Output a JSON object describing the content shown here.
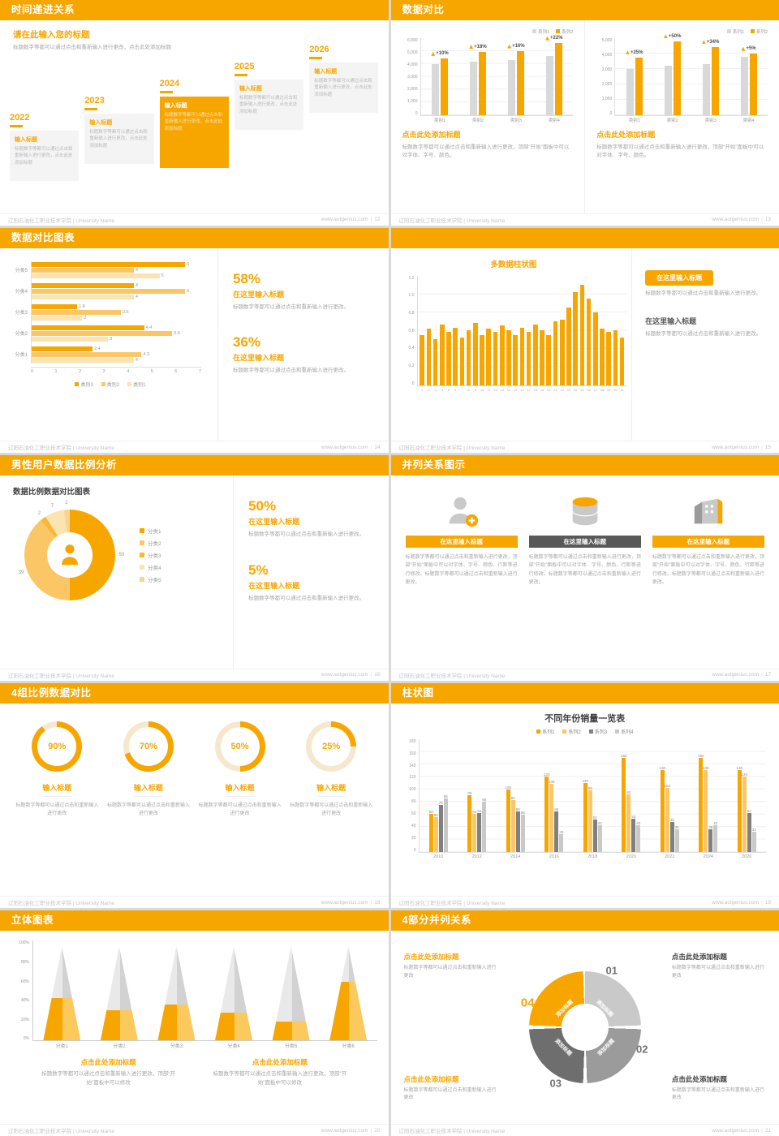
{
  "theme": {
    "orange": "#F7A600",
    "orange_light": "#FBC766",
    "orange_pale": "#FDE3B0",
    "gray_dark": "#595959",
    "gray_mid": "#9B9B9B",
    "gray_light": "#D9D9D9"
  },
  "footer": {
    "org": "辽阳石油化工职业技术学院 | University Name",
    "site": "www.aotgenius.com"
  },
  "slides": {
    "s1": {
      "header": "时间递进关系",
      "page": "12",
      "heading": "请在此输入您的标题",
      "subtext": "标题数字等都可以通过点击和重新输入进行更改，点击此处添加标题",
      "steps": [
        {
          "year": "2022",
          "title": "输入标题",
          "body": "标题数字等都可以通过点击和重新输入进行更改，点击此处添加标题",
          "highlight": false
        },
        {
          "year": "2023",
          "title": "输入标题",
          "body": "标题数字等都可以通过点击和重新输入进行更改，点击此处添加标题",
          "highlight": false
        },
        {
          "year": "2024",
          "title": "输入标题",
          "body": "标题数字等都可以通过点击和重新输入进行更改，点击此处添加标题",
          "highlight": true
        },
        {
          "year": "2025",
          "title": "输入标题",
          "body": "标题数字等都可以通过点击和重新输入进行更改，点击此处添加标题",
          "highlight": false
        },
        {
          "year": "2026",
          "title": "输入标题",
          "body": "标题数字等都可以通过点击和重新输入进行更改，点击此处添加标题",
          "highlight": false
        }
      ]
    },
    "s2": {
      "header": "数据对比",
      "page": "13",
      "left": {
        "type": "bar",
        "legend": [
          "系列1",
          "系列2"
        ],
        "yticks": [
          "6,000",
          "5,000",
          "4,000",
          "3,000",
          "2,000",
          "1,000",
          "0"
        ],
        "ymax": 6000,
        "categories": [
          "类别1",
          "类别2",
          "类别3",
          "类别4"
        ],
        "series1": [
          4000,
          4200,
          4300,
          4600
        ],
        "series2": [
          4400,
          4956,
          4988,
          5612
        ],
        "labels": [
          "+10%",
          "+18%",
          "+16%",
          "+22%"
        ],
        "title": "点击此处添加标题",
        "body": "标题数字等都可以通过点击和重新输入进行更改，顶部“开始”面板中可以对字体、字号、颜色。"
      },
      "right": {
        "type": "bar",
        "legend": [
          "系列1",
          "系列2"
        ],
        "yticks": [
          "5,000",
          "4,000",
          "3,000",
          "2,000",
          "1,000",
          "0"
        ],
        "ymax": 5000,
        "categories": [
          "类别1",
          "类别2",
          "类别3",
          "类别4"
        ],
        "series1": [
          3000,
          3200,
          3300,
          3800
        ],
        "series2": [
          3750,
          4800,
          4422,
          3990
        ],
        "labels": [
          "+25%",
          "+50%",
          "+34%",
          "+5%"
        ],
        "title": "点击此处添加标题",
        "body": "标题数字等都可以通过点击和重新输入进行更改，顶部“开始”面板中可以对字体、字号、颜色。"
      }
    },
    "s3": {
      "header": "数据对比图表",
      "page": "14",
      "chart": {
        "type": "bar",
        "categories": [
          "分类5",
          "分类4",
          "分类3",
          "分类2",
          "分类1"
        ],
        "series": [
          "类别3",
          "类别2",
          "类别1"
        ],
        "colors": [
          "#F7A600",
          "#FBC766",
          "#FDE3B0"
        ],
        "rows": [
          [
            6,
            4,
            5
          ],
          [
            4,
            6,
            4
          ],
          [
            1.8,
            3.5,
            2
          ],
          [
            4.4,
            5.5,
            3
          ],
          [
            2.4,
            4.3,
            4
          ]
        ],
        "xticks": [
          "0",
          "1",
          "2",
          "3",
          "4",
          "5",
          "6",
          "7"
        ],
        "xmax": 7
      },
      "stats": [
        {
          "pct": "58%",
          "title": "在这里输入标题",
          "body": "标题数字等都可以通过点击和重新输入进行更改。"
        },
        {
          "pct": "36%",
          "title": "在这里输入标题",
          "body": "标题数字等都可以通过点击和重新输入进行更改。"
        }
      ]
    },
    "s4": {
      "header": "数据柱状图",
      "page": "15",
      "chart": {
        "type": "bar",
        "title": "多数据柱状图",
        "yticks": [
          "1.2",
          "1.0",
          "0.8",
          "0.6",
          "0.4",
          "0.2",
          "0"
        ],
        "ymax": 1.2,
        "values": [
          0.55,
          0.62,
          0.5,
          0.66,
          0.58,
          0.63,
          0.52,
          0.6,
          0.68,
          0.55,
          0.62,
          0.58,
          0.65,
          0.6,
          0.55,
          0.63,
          0.58,
          0.66,
          0.6,
          0.55,
          0.7,
          0.72,
          0.85,
          1.02,
          1.1,
          0.95,
          0.8,
          0.62,
          0.58,
          0.6,
          0.52
        ],
        "xlabels": [
          "1",
          "2",
          "3",
          "4",
          "5",
          "6",
          "7",
          "8",
          "9",
          "10",
          "11",
          "12",
          "13",
          "14",
          "15",
          "16",
          "17",
          "18",
          "19",
          "20",
          "21",
          "22",
          "23",
          "24",
          "25",
          "26",
          "27",
          "28",
          "29",
          "30",
          "31"
        ]
      },
      "blocks": [
        {
          "title": "在这里输入标题",
          "body": "标题数字等都可以通过点击和重新输入进行更改。"
        },
        {
          "title": "在这里输入标题",
          "body": "标题数字等都可以通过点击和重新输入进行更改。"
        }
      ]
    },
    "s5": {
      "header": "男性用户数据比例分析",
      "page": "16",
      "chart_title": "数据比例数据对比图表",
      "donut": {
        "type": "pie",
        "values": [
          50,
          39,
          2,
          7,
          2
        ],
        "colors": [
          "#F7A600",
          "#FBC766",
          "#F9B733",
          "#FDE3B0",
          "#F5D58F"
        ],
        "legend": [
          "分类1",
          "分类2",
          "分类3",
          "分类4",
          "分类5"
        ]
      },
      "stats": [
        {
          "pct": "50%",
          "title": "在这里输入标题",
          "body": "标题数字等都可以通过点击和重新输入进行更改。"
        },
        {
          "pct": "5%",
          "title": "在这里输入标题",
          "body": "标题数字等都可以通过点击和重新输入进行更改。"
        }
      ]
    },
    "s6": {
      "header": "并列关系图示",
      "page": "17",
      "columns": [
        {
          "icon": "person-add",
          "title": "在这里输入标题",
          "body": "标题数字等都可以通过点击和重新输入进行更改，顶部“开始”面板中可以对字体、字号、颜色、行距等进行修改。标题数字等都可以通过点击和重新输入进行更改。"
        },
        {
          "icon": "database",
          "title": "在这里输入标题",
          "body": "标题数字等都可以通过点击和重新输入进行更改，顶部“开始”面板中可以对字体、字号、颜色、行距等进行修改。标题数字等都可以通过点击和重新输入进行更改。"
        },
        {
          "icon": "building",
          "title": "在这里输入标题",
          "body": "标题数字等都可以通过点击和重新输入进行更改，顶部“开始”面板中可以对字体、字号、颜色、行距等进行修改。标题数字等都可以通过点击和重新输入进行更改。"
        }
      ]
    },
    "s7": {
      "header": "4组比例数据对比",
      "page": "18",
      "rings": [
        {
          "pct": 90,
          "label": "90%",
          "title": "输入标题",
          "body": "标题数字等都可以通过点击和重新输入进行更改"
        },
        {
          "pct": 70,
          "label": "70%",
          "title": "输入标题",
          "body": "标题数字等都可以通过点击和重新输入进行更改"
        },
        {
          "pct": 50,
          "label": "50%",
          "title": "输入标题",
          "body": "标题数字等都可以通过点击和重新输入进行更改"
        },
        {
          "pct": 25,
          "label": "25%",
          "title": "输入标题",
          "body": "标题数字等都可以通过点击和重新输入进行更改"
        }
      ]
    },
    "s8": {
      "header": "柱状图",
      "page": "19",
      "chart": {
        "type": "bar",
        "title": "不同年份销量一览表",
        "legend": [
          "系列1",
          "系列2",
          "系列3",
          "系列4"
        ],
        "colors": [
          "#F7A600",
          "#FBC766",
          "#808080",
          "#C9C9C9"
        ],
        "yticks": [
          "180",
          "160",
          "140",
          "120",
          "100",
          "80",
          "60",
          "40",
          "20",
          "0"
        ],
        "ymax": 180,
        "years": [
          "2010",
          "2012",
          "2014",
          "2016",
          "2018",
          "2020",
          "2022",
          "2024",
          "2026"
        ],
        "values": [
          [
            60,
            55,
            75,
            85
          ],
          [
            90,
            60,
            62,
            80
          ],
          [
            100,
            82,
            65,
            59
          ],
          [
            120,
            108,
            65,
            28
          ],
          [
            110,
            98,
            52,
            42
          ],
          [
            150,
            92,
            53,
            42
          ],
          [
            130,
            102,
            48,
            36
          ],
          [
            150,
            130,
            36,
            42
          ],
          [
            130,
            120,
            62,
            32
          ]
        ]
      }
    },
    "s9": {
      "header": "立体图表",
      "page": "20",
      "chart": {
        "type": "bar",
        "yticks": [
          "100%",
          "80%",
          "60%",
          "40%",
          "20%",
          "0%"
        ],
        "categories": [
          "分类1",
          "分类2",
          "分类3",
          "分类4",
          "分类5",
          "分类6"
        ],
        "fills": [
          45,
          32,
          38,
          30,
          20,
          62
        ]
      },
      "blocks": [
        {
          "title": "点击此处添加标题",
          "body": "标题数字等都可以通过点击和重新输入进行更改，顶部“开始”面板中可以修改"
        },
        {
          "title": "点击此处添加标题",
          "body": "标题数字等都可以通过点击和重新输入进行更改，顶部“开始”面板中可以修改"
        }
      ]
    },
    "s10": {
      "header": "4部分并列关系",
      "page": "21",
      "wheel": {
        "labels": [
          "添加标题",
          "添加标题",
          "添加标题",
          "添加标题"
        ],
        "numbers": [
          "01",
          "02",
          "03",
          "04"
        ],
        "colors": {
          "tl": "#F7A600",
          "tr": "#C9C9C9",
          "br": "#9B9B9B",
          "bl": "#6E6E6E"
        }
      },
      "blocks": [
        {
          "title": "点击此处添加标题",
          "body": "标题数字等都可以通过点击和重新输入进行更改"
        },
        {
          "title": "点击此处添加标题",
          "body": "标题数字等都可以通过点击和重新输入进行更改"
        },
        {
          "title": "点击此处添加标题",
          "body": "标题数字等都可以通过点击和重新输入进行更改"
        },
        {
          "title": "点击此处添加标题",
          "body": "标题数字等都可以通过点击和重新输入进行更改"
        }
      ]
    }
  }
}
